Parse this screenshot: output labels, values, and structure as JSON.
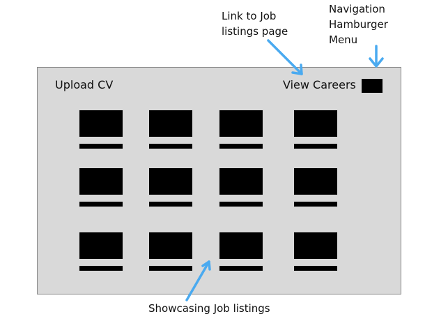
{
  "annotations": {
    "link_line1": "Link to Job",
    "link_line2": "listings page",
    "menu_line1": "Navigation",
    "menu_line2": "Hamburger",
    "menu_line3": "Menu",
    "listings": "Showcasing Job listings"
  },
  "header": {
    "upload_cv": "Upload CV",
    "view_careers": "View Careers"
  },
  "grid": {
    "rows": 3,
    "columns": 4
  },
  "colors": {
    "frame_background": "#d9d9d9",
    "frame_border": "#8a8a8a",
    "placeholder_block": "#000000",
    "arrow": "#4aaaf0"
  },
  "icons": {
    "menu": "hamburger-menu-icon"
  }
}
